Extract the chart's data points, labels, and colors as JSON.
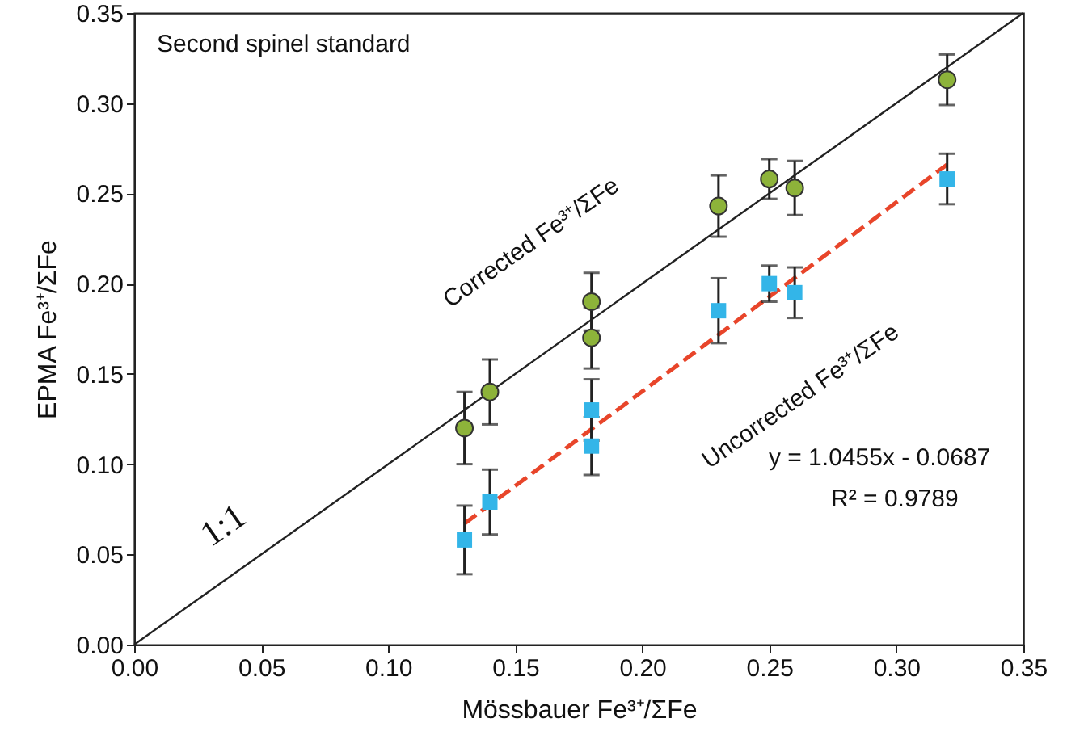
{
  "chart_data": {
    "type": "scatter",
    "xlabel": "Mössbauer Fe³⁺/ΣFe",
    "ylabel": "EPMA Fe³⁺/ΣFe",
    "xlim": [
      0,
      0.35
    ],
    "ylim": [
      0,
      0.35
    ],
    "xticks": [
      {
        "value": 0,
        "label": "0.00"
      },
      0.05,
      {
        "value": 0.1,
        "label": "0.10"
      },
      0.15,
      {
        "value": 0.2,
        "label": "0.20"
      },
      0.25,
      {
        "value": 0.3,
        "label": "0.30"
      },
      0.35
    ],
    "yticks": [
      {
        "value": 0,
        "label": "0.00"
      },
      0.05,
      {
        "value": 0.1,
        "label": "0.10"
      },
      0.15,
      {
        "value": 0.2,
        "label": "0.20"
      },
      0.25,
      {
        "value": 0.3,
        "label": "0.30"
      },
      0.35
    ],
    "grid": false,
    "series": [
      {
        "type": "line",
        "color": "#222222",
        "line_style": "solid",
        "x": [
          0,
          0.35
        ],
        "values": [
          0,
          0.35
        ]
      },
      {
        "type": "line",
        "color": "#e8452a",
        "line_style": "dashed",
        "x": [
          0.13,
          0.32
        ],
        "values": [
          0.067,
          0.266
        ]
      },
      {
        "color": "#8db33a",
        "marker": "circle",
        "x": [
          0.13,
          0.14,
          0.18,
          0.18,
          0.23,
          0.25,
          0.26,
          0.32
        ],
        "values": [
          0.12,
          0.14,
          0.19,
          0.17,
          0.243,
          0.258,
          0.253,
          0.313
        ],
        "errors": [
          0.02,
          0.018,
          0.016,
          0.017,
          0.017,
          0.011,
          0.015,
          0.014
        ]
      },
      {
        "color": "#33b5e8",
        "marker": "square",
        "x": [
          0.13,
          0.14,
          0.18,
          0.18,
          0.23,
          0.25,
          0.26,
          0.32
        ],
        "values": [
          0.058,
          0.079,
          0.13,
          0.11,
          0.185,
          0.2,
          0.195,
          0.258
        ],
        "errors": [
          0.019,
          0.018,
          0.017,
          0.016,
          0.018,
          0.01,
          0.014,
          0.014
        ]
      }
    ],
    "annotations": [
      "Corrected Fe³⁺/ΣFe",
      "Uncorrected Fe³⁺/ΣFe",
      "1:1",
      "y = 1.0455x - 0.0687",
      "R² = 0.9789",
      "Second spinel standard"
    ]
  }
}
